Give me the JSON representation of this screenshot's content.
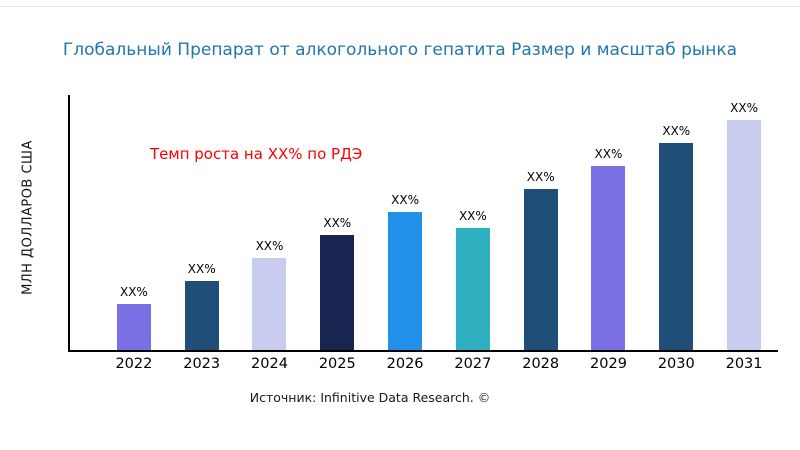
{
  "chart_data": {
    "type": "bar",
    "title": "Глобальный Препарат от алкогольного гепатита Размер и масштаб рынка",
    "ylabel": "МЛН ДОЛЛАРОВ США",
    "annotation": "Темп роста на XX% по РДЭ",
    "source": "Источник: Infinitive Data Research. ©",
    "categories": [
      "2022",
      "2023",
      "2024",
      "2025",
      "2026",
      "2027",
      "2028",
      "2029",
      "2030",
      "2031"
    ],
    "values": [
      20,
      30,
      40,
      50,
      60,
      53,
      70,
      80,
      90,
      100
    ],
    "bar_labels": [
      "XX%",
      "XX%",
      "XX%",
      "XX%",
      "XX%",
      "XX%",
      "XX%",
      "XX%",
      "XX%",
      "XX%"
    ],
    "bar_colors": [
      "#7a6fe3",
      "#1f4e79",
      "#c8ccee",
      "#172550",
      "#2190e8",
      "#2fb0c0",
      "#1f4e79",
      "#7a6fe3",
      "#1f4e79",
      "#c8ccee"
    ],
    "ylim": [
      0,
      100
    ],
    "grid": false,
    "legend": "none"
  },
  "colors": {
    "title": "#2176ae",
    "annotation": "#ff0000",
    "axis": "#000000",
    "background": "#ffffff"
  }
}
